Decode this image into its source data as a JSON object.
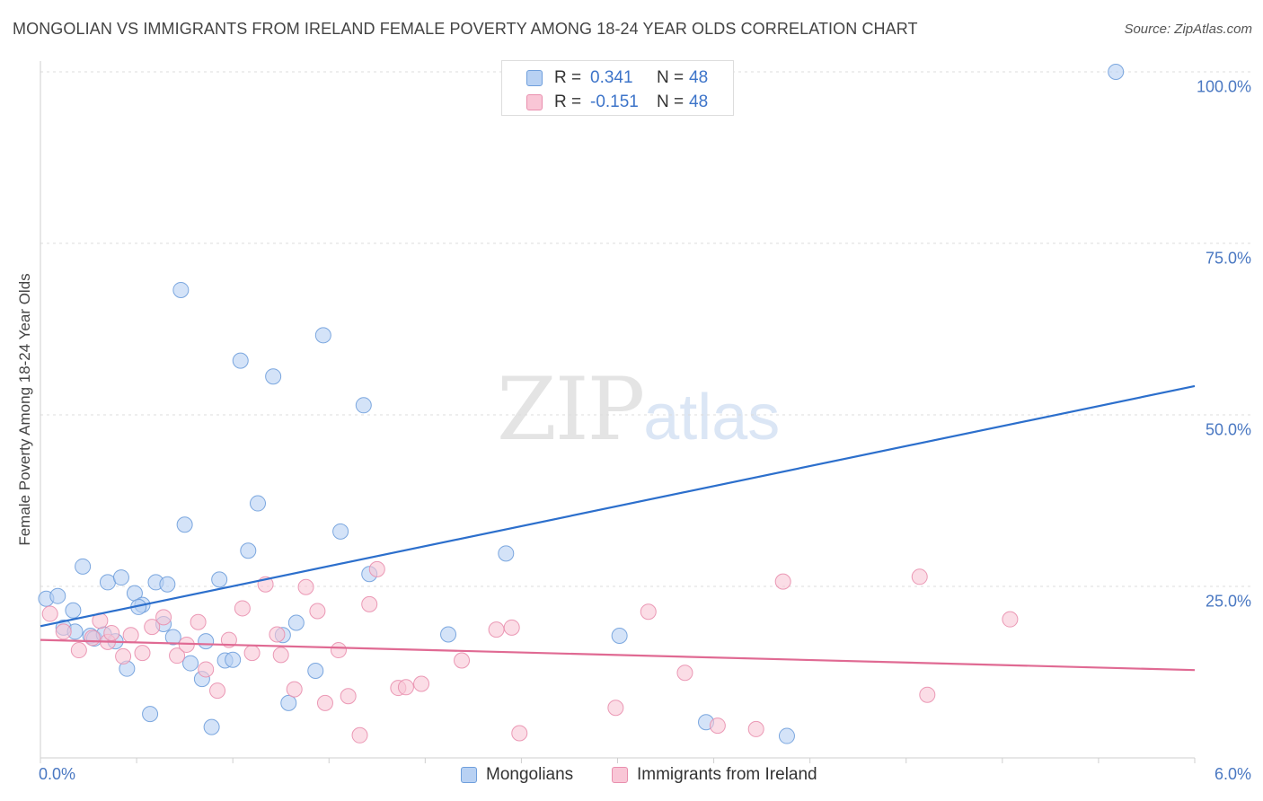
{
  "title": "MONGOLIAN VS IMMIGRANTS FROM IRELAND FEMALE POVERTY AMONG 18-24 YEAR OLDS CORRELATION CHART",
  "source": "Source: ZipAtlas.com",
  "watermark": {
    "zip": "ZIP",
    "atlas": "atlas"
  },
  "colors": {
    "mongolians_fill": "#b8d1f3",
    "mongolians_stroke": "#6f9fdc",
    "mongolians_line": "#2c6fcc",
    "ireland_fill": "#f9c6d6",
    "ireland_stroke": "#e98fae",
    "ireland_line": "#e06a93",
    "tick_text": "#4a78c2"
  },
  "legend": {
    "rows": [
      {
        "r_label": "R =",
        "r_value": "0.341",
        "n_label": "N =",
        "n_value": "48"
      },
      {
        "r_label": "R =",
        "r_value": "-0.151",
        "n_label": "N =",
        "n_value": "48"
      }
    ]
  },
  "bottom_legend": [
    "Mongolians",
    "Immigrants from Ireland"
  ],
  "chart_data": {
    "type": "scatter",
    "title": "MONGOLIAN VS IMMIGRANTS FROM IRELAND FEMALE POVERTY AMONG 18-24 YEAR OLDS CORRELATION CHART",
    "xlabel": "",
    "ylabel": "Female Poverty Among 18-24 Year Olds",
    "xlim": [
      0,
      6
    ],
    "ylim": [
      0,
      102
    ],
    "x_tick_labels": [
      "0.0%",
      "6.0%"
    ],
    "y_ticks": [
      25,
      50,
      75,
      100
    ],
    "y_tick_labels": [
      "25.0%",
      "50.0%",
      "75.0%",
      "100.0%"
    ],
    "grid": "horizontal-dashed",
    "legend_position": "top-center",
    "series": [
      {
        "name": "Mongolians",
        "r": 0.341,
        "n": 48,
        "trend": [
          [
            0,
            19.2
          ],
          [
            6,
            54.2
          ]
        ],
        "points": [
          [
            0.03,
            23.2
          ],
          [
            0.09,
            23.6
          ],
          [
            0.12,
            19.0
          ],
          [
            0.18,
            18.4
          ],
          [
            0.22,
            27.9
          ],
          [
            0.26,
            17.8
          ],
          [
            0.28,
            17.4
          ],
          [
            0.33,
            18.0
          ],
          [
            0.35,
            25.6
          ],
          [
            0.39,
            17.0
          ],
          [
            0.42,
            26.3
          ],
          [
            0.45,
            13.0
          ],
          [
            0.49,
            24.0
          ],
          [
            0.53,
            22.3
          ],
          [
            0.57,
            6.4
          ],
          [
            0.6,
            25.6
          ],
          [
            0.64,
            19.5
          ],
          [
            0.66,
            25.3
          ],
          [
            0.69,
            17.6
          ],
          [
            0.73,
            68.2
          ],
          [
            0.75,
            34.0
          ],
          [
            0.78,
            13.8
          ],
          [
            0.84,
            11.5
          ],
          [
            0.86,
            17.0
          ],
          [
            0.89,
            4.5
          ],
          [
            0.93,
            26.0
          ],
          [
            0.96,
            14.2
          ],
          [
            1.0,
            14.3
          ],
          [
            1.04,
            57.9
          ],
          [
            1.08,
            30.2
          ],
          [
            1.13,
            37.1
          ],
          [
            1.21,
            55.6
          ],
          [
            1.26,
            17.9
          ],
          [
            1.29,
            8.0
          ],
          [
            1.33,
            19.7
          ],
          [
            1.43,
            12.7
          ],
          [
            1.47,
            61.6
          ],
          [
            1.56,
            33.0
          ],
          [
            1.68,
            51.4
          ],
          [
            1.71,
            26.8
          ],
          [
            2.12,
            18.0
          ],
          [
            2.42,
            29.8
          ],
          [
            3.01,
            17.8
          ],
          [
            3.46,
            5.2
          ],
          [
            3.88,
            3.2
          ],
          [
            5.59,
            100.0
          ],
          [
            0.51,
            22.0
          ],
          [
            0.17,
            21.5
          ]
        ]
      },
      {
        "name": "Immigrants from Ireland",
        "r": -0.151,
        "n": 48,
        "trend": [
          [
            0,
            17.2
          ],
          [
            6,
            12.8
          ]
        ],
        "points": [
          [
            0.05,
            21.0
          ],
          [
            0.12,
            18.4
          ],
          [
            0.2,
            15.7
          ],
          [
            0.27,
            17.5
          ],
          [
            0.31,
            20.0
          ],
          [
            0.35,
            16.9
          ],
          [
            0.37,
            18.2
          ],
          [
            0.43,
            14.8
          ],
          [
            0.47,
            17.9
          ],
          [
            0.53,
            15.3
          ],
          [
            0.58,
            19.1
          ],
          [
            0.64,
            20.5
          ],
          [
            0.71,
            14.9
          ],
          [
            0.76,
            16.5
          ],
          [
            0.82,
            19.8
          ],
          [
            0.86,
            12.9
          ],
          [
            0.92,
            9.8
          ],
          [
            0.98,
            17.2
          ],
          [
            1.05,
            21.8
          ],
          [
            1.1,
            15.3
          ],
          [
            1.17,
            25.3
          ],
          [
            1.23,
            18.0
          ],
          [
            1.25,
            15.0
          ],
          [
            1.32,
            10.0
          ],
          [
            1.38,
            24.9
          ],
          [
            1.44,
            21.4
          ],
          [
            1.48,
            8.0
          ],
          [
            1.55,
            15.7
          ],
          [
            1.6,
            9.0
          ],
          [
            1.66,
            3.3
          ],
          [
            1.71,
            22.4
          ],
          [
            1.75,
            27.5
          ],
          [
            1.86,
            10.2
          ],
          [
            1.9,
            10.3
          ],
          [
            1.98,
            10.8
          ],
          [
            2.19,
            14.2
          ],
          [
            2.37,
            18.7
          ],
          [
            2.45,
            19.0
          ],
          [
            2.49,
            3.6
          ],
          [
            2.99,
            7.3
          ],
          [
            3.16,
            21.3
          ],
          [
            3.35,
            12.4
          ],
          [
            3.52,
            4.7
          ],
          [
            3.72,
            4.2
          ],
          [
            3.86,
            25.7
          ],
          [
            4.57,
            26.4
          ],
          [
            4.61,
            9.2
          ],
          [
            5.04,
            20.2
          ]
        ]
      }
    ]
  }
}
